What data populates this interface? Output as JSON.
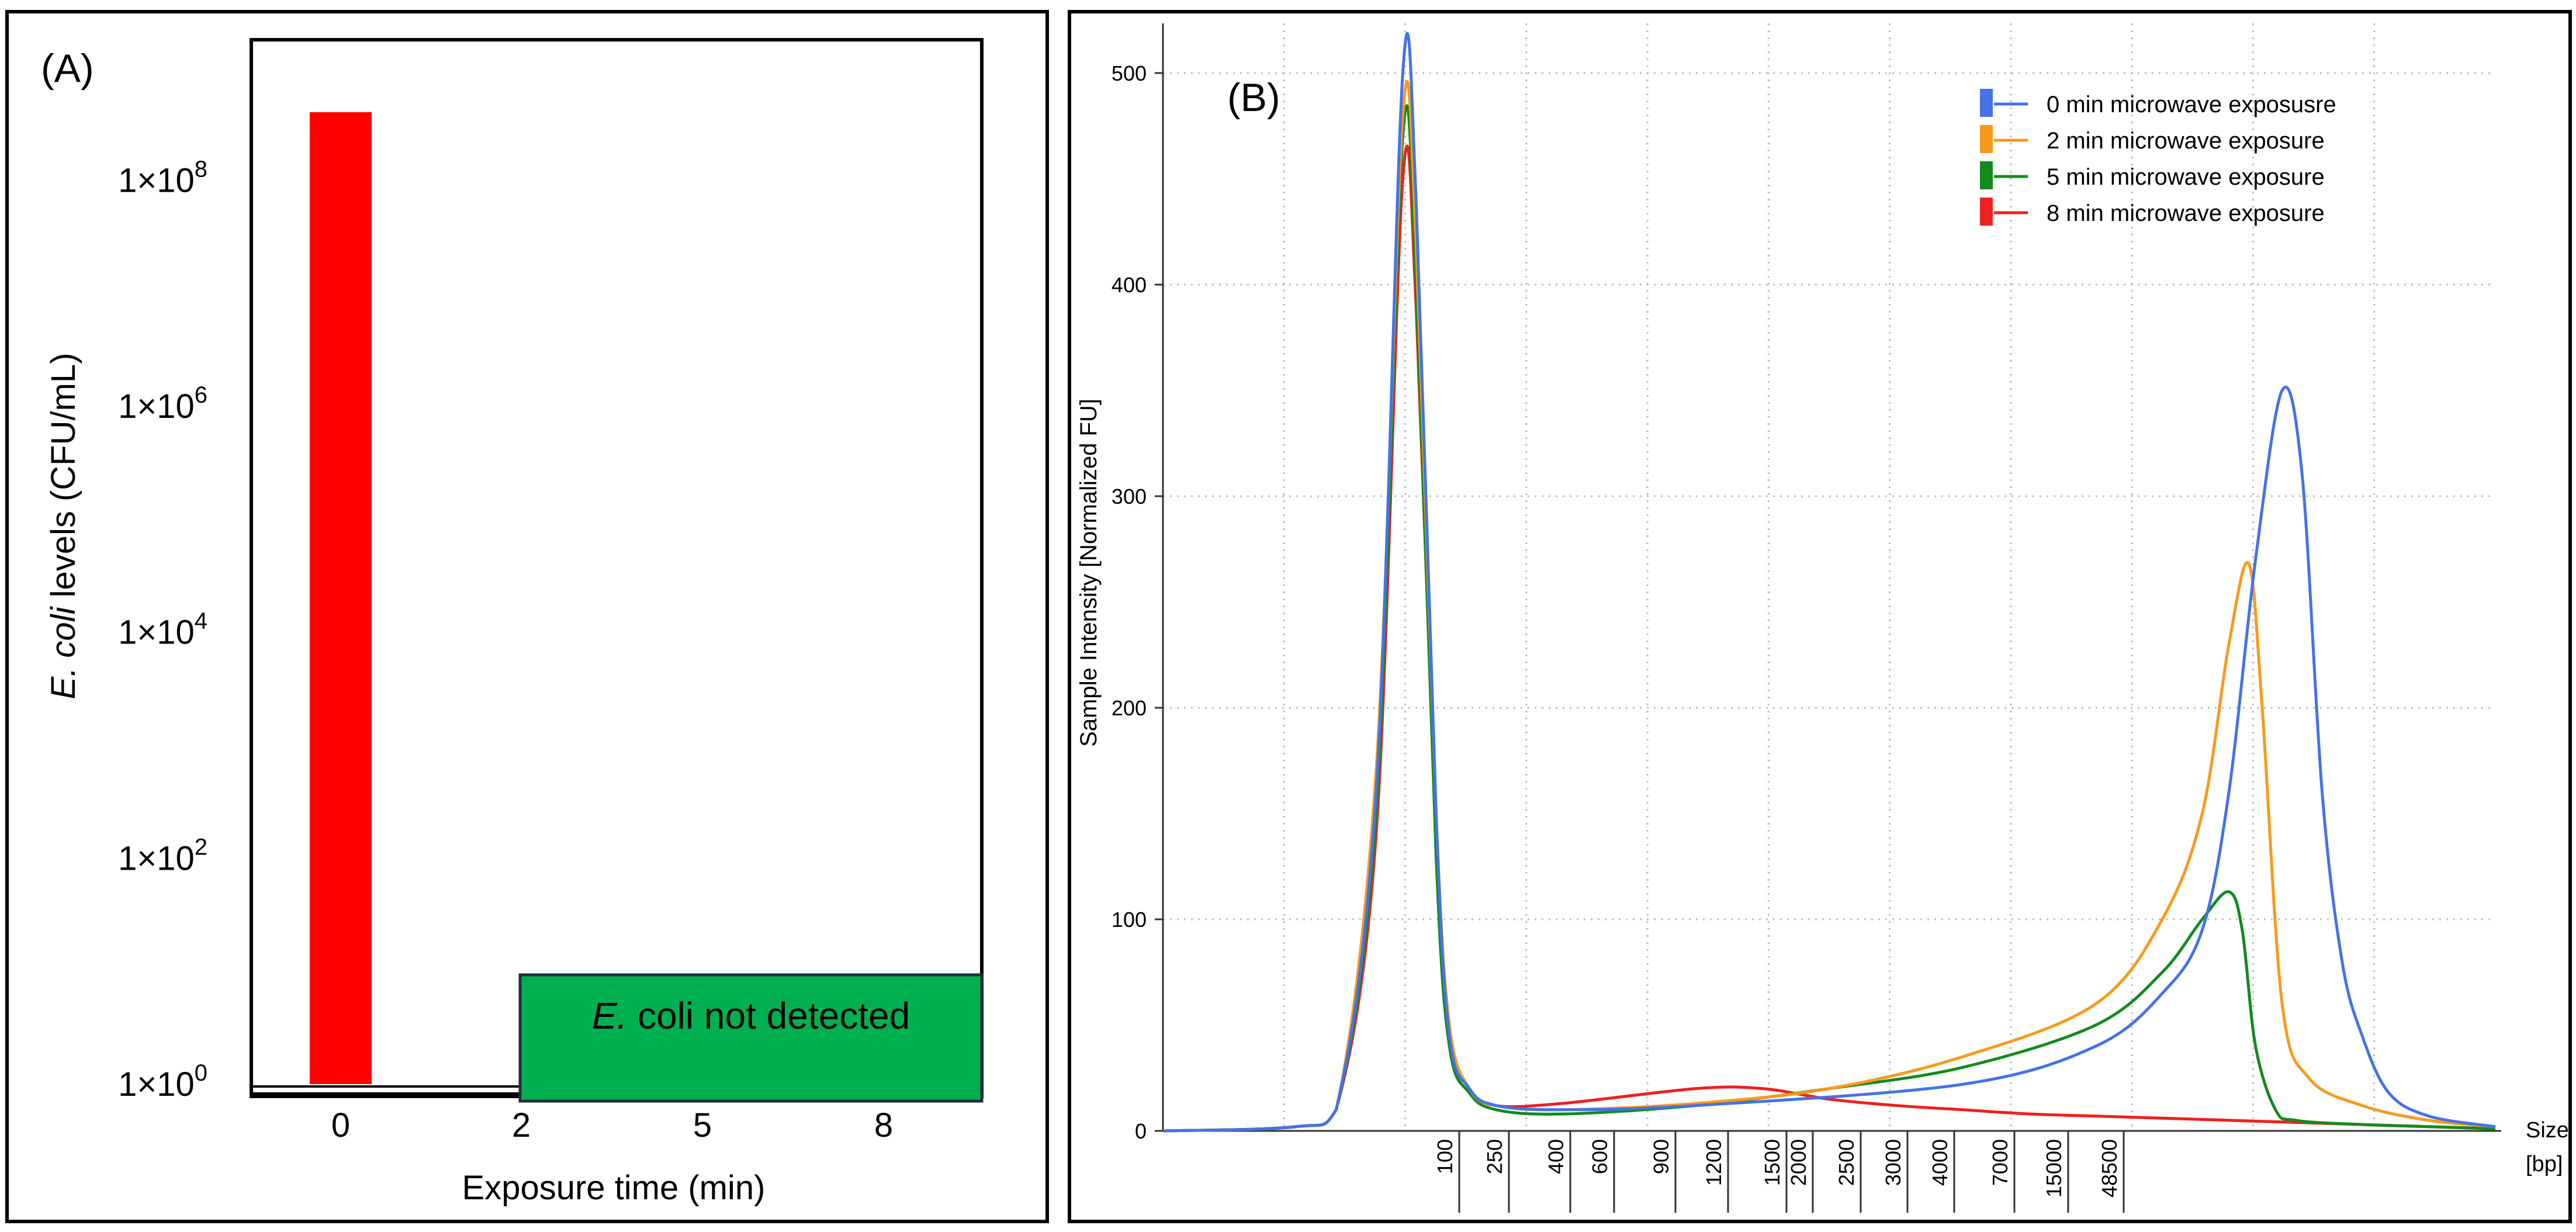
{
  "chart_data": [
    {
      "type": "bar",
      "panel_label": "(A)",
      "xlabel": "Exposure time (min)",
      "ylabel_italic": "E. coli",
      "ylabel_rest": " levels  (CFU/mL)",
      "y_scale": "log",
      "ylim": [
        1,
        1000000000
      ],
      "y_ticks": [
        {
          "value": 1,
          "base": "1×10",
          "exp": "0"
        },
        {
          "value": 100,
          "base": "1×10",
          "exp": "2"
        },
        {
          "value": 10000,
          "base": "1×10",
          "exp": "4"
        },
        {
          "value": 1000000,
          "base": "1×10",
          "exp": "6"
        },
        {
          "value": 100000000,
          "base": "1×10",
          "exp": "8"
        }
      ],
      "categories": [
        "0",
        "2",
        "5",
        "8"
      ],
      "values": [
        400000000,
        1,
        1,
        1
      ],
      "bar_color": "#ff0000",
      "annotation": {
        "italic": "E.",
        "rest": " coli not detected",
        "fill": "#00b050"
      }
    },
    {
      "type": "line",
      "panel_label": "(B)",
      "ylabel": "Sample Intensity [Normalized FU]",
      "xlabel": "Size",
      "xunit": "[bp]",
      "ylim": [
        0,
        500
      ],
      "y_ticks": [
        0,
        100,
        200,
        300,
        400,
        500
      ],
      "x_ticks": [
        "100",
        "250",
        "400",
        "600",
        "900",
        "1200",
        "1500",
        "2000",
        "2500",
        "3000",
        "4000",
        "7000",
        "15000",
        "48500"
      ],
      "grid": true,
      "legend_position": "top-right",
      "series": [
        {
          "name": "0 min microwave exposusre",
          "color": "#4472e8",
          "x": [
            0,
            0.1,
            0.13,
            0.16,
            0.18,
            0.19,
            0.205,
            0.215,
            0.23,
            0.25,
            0.3,
            0.4,
            0.6,
            0.7,
            0.75,
            0.78,
            0.8,
            0.82,
            0.84,
            0.855,
            0.87,
            0.885,
            0.9,
            0.92,
            0.95,
            1
          ],
          "y": [
            0,
            2,
            10,
            160,
            500,
            440,
            150,
            45,
            20,
            12,
            10,
            12,
            22,
            40,
            65,
            95,
            160,
            270,
            350,
            310,
            160,
            80,
            45,
            18,
            7,
            2
          ]
        },
        {
          "name": "2 min microwave exposure",
          "color": "#f79a1b",
          "x": [
            0,
            0.1,
            0.13,
            0.16,
            0.18,
            0.19,
            0.205,
            0.215,
            0.23,
            0.25,
            0.3,
            0.4,
            0.5,
            0.6,
            0.7,
            0.75,
            0.78,
            0.8,
            0.815,
            0.825,
            0.84,
            0.86,
            0.9,
            0.95,
            1
          ],
          "y": [
            0,
            2,
            10,
            170,
            480,
            420,
            150,
            50,
            20,
            12,
            10,
            13,
            20,
            35,
            60,
            100,
            150,
            230,
            268,
            200,
            60,
            25,
            12,
            5,
            2
          ]
        },
        {
          "name": "5 min microwave exposure",
          "color": "#138a1e",
          "x": [
            0,
            0.1,
            0.13,
            0.16,
            0.18,
            0.19,
            0.205,
            0.215,
            0.23,
            0.25,
            0.3,
            0.4,
            0.5,
            0.6,
            0.7,
            0.75,
            0.78,
            0.8,
            0.81,
            0.82,
            0.835,
            0.85,
            0.9,
            0.95,
            1
          ],
          "y": [
            0,
            2,
            10,
            150,
            470,
            400,
            130,
            40,
            18,
            10,
            8,
            12,
            20,
            30,
            50,
            75,
            100,
            113,
            95,
            40,
            10,
            5,
            3,
            2,
            1
          ]
        },
        {
          "name": "8 min microwave exposure",
          "color": "#ee2020",
          "x": [
            0,
            0.1,
            0.13,
            0.16,
            0.18,
            0.19,
            0.205,
            0.215,
            0.23,
            0.25,
            0.3,
            0.4,
            0.45,
            0.5,
            0.55,
            0.6,
            0.65,
            0.7,
            0.75,
            0.8,
            0.85,
            0.9,
            0.95,
            1
          ],
          "y": [
            0,
            2,
            10,
            140,
            450,
            390,
            140,
            45,
            20,
            12,
            13,
            20,
            20,
            15,
            12,
            10,
            8,
            7,
            6,
            5,
            4,
            3,
            2,
            1
          ]
        }
      ]
    }
  ]
}
